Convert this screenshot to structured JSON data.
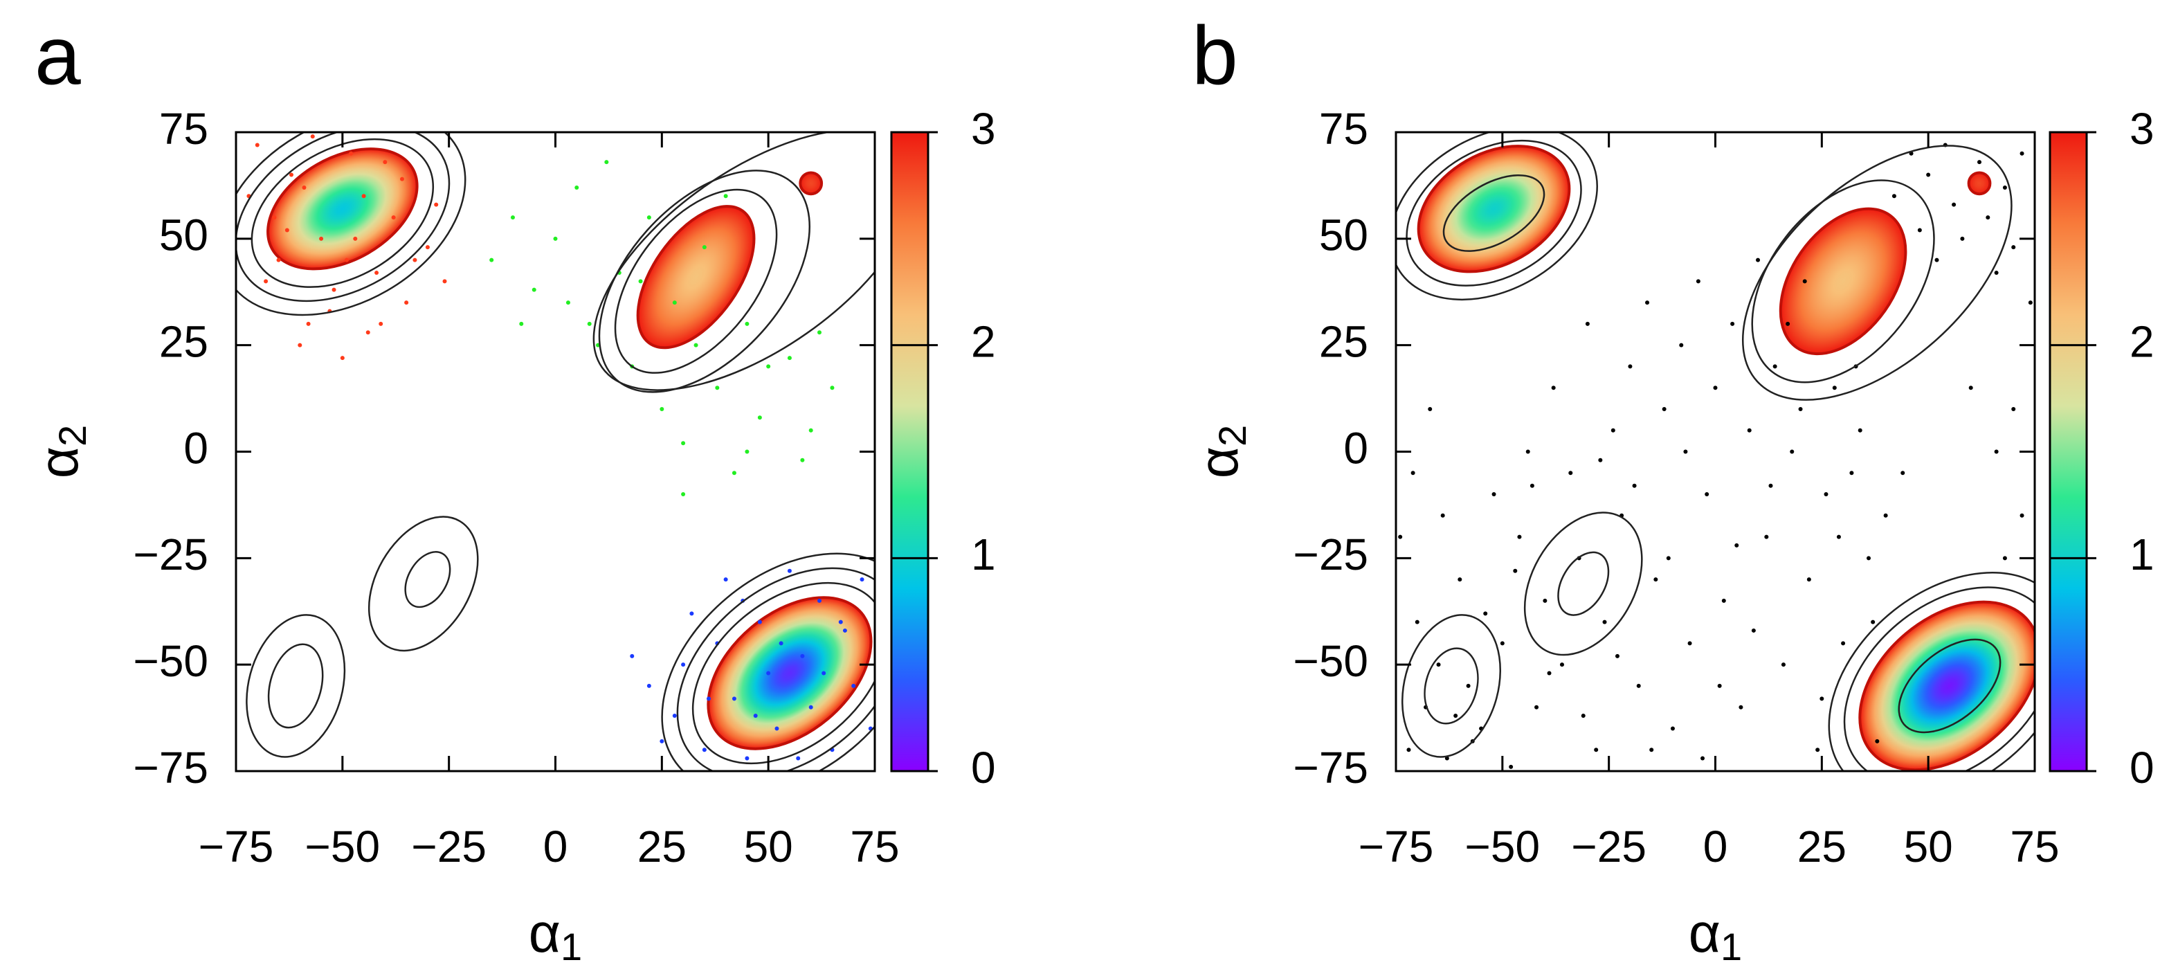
{
  "chart_data": [
    {
      "type": "contour",
      "panel_label": "a",
      "xlabel": {
        "symbol": "α",
        "subscript": "1"
      },
      "ylabel": {
        "symbol": "α",
        "subscript": "2"
      },
      "xlim": [
        -75,
        75
      ],
      "ylim": [
        -75,
        75
      ],
      "xticks": [
        {
          "value": -75,
          "label": "−75"
        },
        {
          "value": -50,
          "label": "−50"
        },
        {
          "value": -25,
          "label": "−25"
        },
        0,
        25,
        50,
        75
      ],
      "yticks": [
        {
          "value": -75,
          "label": "−75"
        },
        {
          "value": -50,
          "label": "−50"
        },
        {
          "value": -25,
          "label": "−25"
        },
        0,
        25,
        50,
        75
      ],
      "clim": [
        0,
        3
      ],
      "cticks": [
        0,
        1,
        2,
        3
      ],
      "colormap": [
        "#8a00ff",
        "#2a5cff",
        "#00c4e8",
        "#2ee890",
        "#d8e4a0",
        "#f8c078",
        "#f87a3a",
        "#ee1a10"
      ],
      "basins": [
        {
          "x": -50,
          "y": 57,
          "rx": 19,
          "ry": 12,
          "angle": 30,
          "min": 0.9
        },
        {
          "x": 33,
          "y": 41,
          "rx": 19,
          "ry": 10,
          "angle": 55,
          "min": 2.1
        },
        {
          "x": 60,
          "y": 63,
          "rx": 2.5,
          "ry": 2.5,
          "angle": 0,
          "min": 2.8
        },
        {
          "x": 55,
          "y": -52,
          "rx": 22,
          "ry": 14,
          "angle": 40,
          "min": 0.2
        }
      ],
      "contours": [
        {
          "x": -50,
          "y": 56,
          "rx": 23,
          "ry": 15,
          "angle": 30
        },
        {
          "x": -50,
          "y": 56,
          "rx": 27,
          "ry": 18,
          "angle": 30
        },
        {
          "x": -50,
          "y": 56,
          "rx": 31,
          "ry": 21,
          "angle": 30
        },
        {
          "x": 33,
          "y": 40,
          "rx": 25,
          "ry": 14,
          "angle": 52
        },
        {
          "x": 35,
          "y": 40,
          "rx": 31,
          "ry": 18,
          "angle": 48
        },
        {
          "x": 47,
          "y": 45,
          "rx": 44,
          "ry": 21,
          "angle": 35
        },
        {
          "x": 55,
          "y": -52,
          "rx": 26,
          "ry": 17,
          "angle": 40
        },
        {
          "x": 55,
          "y": -52,
          "rx": 30,
          "ry": 20,
          "angle": 40
        },
        {
          "x": 55,
          "y": -52,
          "rx": 34,
          "ry": 23,
          "angle": 40
        },
        {
          "x": -30,
          "y": -30,
          "rx": 7,
          "ry": 4.5,
          "angle": 60
        },
        {
          "x": -31,
          "y": -31,
          "rx": 17,
          "ry": 11,
          "angle": 60
        },
        {
          "x": -61,
          "y": -55,
          "rx": 10,
          "ry": 6,
          "angle": 75
        },
        {
          "x": -61,
          "y": -55,
          "rx": 17,
          "ry": 11,
          "angle": 75
        }
      ],
      "series": [
        {
          "color": "#ff3a1a",
          "size": 3,
          "x": [
            -70,
            -65,
            -62,
            -58,
            -55,
            -52,
            -48,
            -45,
            -42,
            -38,
            -35,
            -30,
            -28,
            -68,
            -60,
            -50,
            -44,
            -40,
            -33,
            -72,
            -57,
            -47,
            -53,
            -63,
            -36,
            -26,
            -66,
            -49,
            -41,
            -59
          ],
          "y": [
            72,
            45,
            65,
            30,
            50,
            38,
            70,
            60,
            42,
            55,
            35,
            48,
            58,
            40,
            25,
            22,
            28,
            68,
            45,
            60,
            74,
            50,
            33,
            52,
            64,
            40,
            55,
            45,
            30,
            62
          ]
        },
        {
          "color": "#22ee22",
          "size": 3,
          "x": [
            -15,
            -10,
            -5,
            0,
            5,
            8,
            12,
            15,
            18,
            22,
            25,
            28,
            30,
            33,
            35,
            38,
            40,
            42,
            45,
            48,
            50,
            55,
            58,
            60,
            62,
            65,
            20,
            10,
            3,
            -8,
            30,
            45
          ],
          "y": [
            45,
            55,
            38,
            50,
            62,
            30,
            68,
            42,
            20,
            55,
            10,
            35,
            2,
            25,
            48,
            15,
            60,
            -5,
            30,
            8,
            20,
            22,
            -2,
            5,
            28,
            15,
            40,
            25,
            35,
            30,
            -10,
            0
          ]
        },
        {
          "color": "#1a3aff",
          "size": 3,
          "x": [
            18,
            22,
            28,
            32,
            35,
            38,
            40,
            42,
            45,
            48,
            50,
            52,
            55,
            58,
            60,
            62,
            65,
            68,
            70,
            72,
            25,
            30,
            36,
            44,
            47,
            53,
            57,
            63,
            67,
            74
          ],
          "y": [
            -48,
            -55,
            -62,
            -38,
            -70,
            -45,
            -30,
            -58,
            -72,
            -40,
            -52,
            -65,
            -28,
            -48,
            -60,
            -35,
            -70,
            -42,
            -55,
            -30,
            -68,
            -50,
            -58,
            -35,
            -62,
            -45,
            -72,
            -52,
            -40,
            -65
          ]
        }
      ]
    },
    {
      "type": "contour",
      "panel_label": "b",
      "xlabel": {
        "symbol": "α",
        "subscript": "1"
      },
      "ylabel": {
        "symbol": "α",
        "subscript": "2"
      },
      "xlim": [
        -75,
        75
      ],
      "ylim": [
        -75,
        75
      ],
      "xticks": [
        {
          "value": -75,
          "label": "−75"
        },
        {
          "value": -50,
          "label": "−50"
        },
        {
          "value": -25,
          "label": "−25"
        },
        0,
        25,
        50,
        75
      ],
      "yticks": [
        {
          "value": -75,
          "label": "−75"
        },
        {
          "value": -50,
          "label": "−50"
        },
        {
          "value": -25,
          "label": "−25"
        },
        0,
        25,
        50,
        75
      ],
      "clim": [
        0,
        3
      ],
      "cticks": [
        0,
        1,
        2,
        3
      ],
      "colormap": [
        "#8a00ff",
        "#2a5cff",
        "#00c4e8",
        "#2ee890",
        "#d8e4a0",
        "#f8c078",
        "#f87a3a",
        "#ee1a10"
      ],
      "basins": [
        {
          "x": -52,
          "y": 57,
          "rx": 19,
          "ry": 13,
          "angle": 30,
          "min": 1.0
        },
        {
          "x": 30,
          "y": 40,
          "rx": 19,
          "ry": 12,
          "angle": 55,
          "min": 2.1
        },
        {
          "x": 62,
          "y": 63,
          "rx": 2.5,
          "ry": 2.5,
          "angle": 0,
          "min": 2.8
        },
        {
          "x": 55,
          "y": -55,
          "rx": 24,
          "ry": 16,
          "angle": 40,
          "min": 0.1
        }
      ],
      "contours": [
        {
          "x": -52,
          "y": 56,
          "rx": 13,
          "ry": 7,
          "angle": 30
        },
        {
          "x": -52,
          "y": 56,
          "rx": 22,
          "ry": 15,
          "angle": 30
        },
        {
          "x": -52,
          "y": 56,
          "rx": 26,
          "ry": 18,
          "angle": 30
        },
        {
          "x": 30,
          "y": 40,
          "rx": 27,
          "ry": 17,
          "angle": 52
        },
        {
          "x": 38,
          "y": 42,
          "rx": 38,
          "ry": 21,
          "angle": 42
        },
        {
          "x": 55,
          "y": -55,
          "rx": 14,
          "ry": 8,
          "angle": 40
        },
        {
          "x": 55,
          "y": -55,
          "rx": 28,
          "ry": 19,
          "angle": 40
        },
        {
          "x": 55,
          "y": -55,
          "rx": 32,
          "ry": 22,
          "angle": 40
        },
        {
          "x": -31,
          "y": -31,
          "rx": 8,
          "ry": 5,
          "angle": 60
        },
        {
          "x": -31,
          "y": -31,
          "rx": 18,
          "ry": 12,
          "angle": 60
        },
        {
          "x": -62,
          "y": -55,
          "rx": 9,
          "ry": 6,
          "angle": 75
        },
        {
          "x": -62,
          "y": -55,
          "rx": 17,
          "ry": 11,
          "angle": 75
        }
      ],
      "series": [
        {
          "color": "#000000",
          "size": 3,
          "x": [
            -72,
            -70,
            -68,
            -65,
            -63,
            -60,
            -58,
            -55,
            -52,
            -50,
            -48,
            -46,
            -44,
            -42,
            -40,
            -38,
            -36,
            -34,
            -32,
            -30,
            -28,
            -26,
            -24,
            -22,
            -20,
            -18,
            -16,
            -14,
            -12,
            -10,
            -8,
            -6,
            -4,
            -2,
            0,
            2,
            4,
            6,
            8,
            10,
            12,
            14,
            16,
            18,
            20,
            22,
            24,
            26,
            28,
            30,
            32,
            34,
            36,
            38,
            40,
            42,
            44,
            46,
            48,
            50,
            52,
            54,
            56,
            58,
            62,
            64,
            66,
            68,
            70,
            72,
            74,
            70,
            66,
            72,
            68,
            60,
            -74,
            -71,
            -67,
            -64,
            -61,
            -57,
            -54,
            -47,
            -43,
            -39,
            -31,
            -27,
            -23,
            -19,
            -15,
            -11,
            -7,
            -3,
            1,
            5,
            9,
            13,
            17,
            21,
            25,
            29,
            33,
            37
          ],
          "y": [
            -70,
            -40,
            -60,
            -50,
            -72,
            -30,
            -55,
            -65,
            -10,
            -45,
            -74,
            -20,
            0,
            -60,
            -35,
            15,
            -50,
            -5,
            -25,
            30,
            -70,
            -40,
            5,
            -15,
            20,
            -55,
            35,
            -30,
            10,
            -65,
            25,
            -45,
            40,
            -10,
            15,
            -35,
            30,
            -60,
            5,
            45,
            -20,
            20,
            -50,
            0,
            10,
            -30,
            -70,
            -10,
            15,
            -45,
            -5,
            5,
            -25,
            -68,
            -15,
            60,
            -5,
            70,
            52,
            65,
            45,
            72,
            58,
            50,
            68,
            55,
            42,
            62,
            48,
            70,
            35,
            10,
            0,
            -15,
            -25,
            15,
            -20,
            -5,
            10,
            -15,
            -62,
            -68,
            -38,
            -28,
            -8,
            -52,
            -62,
            -2,
            -48,
            -8,
            -70,
            -25,
            0,
            -72,
            -55,
            -22,
            -42,
            -8,
            30,
            40,
            -58,
            -20,
            20,
            -40
          ]
        }
      ]
    }
  ]
}
